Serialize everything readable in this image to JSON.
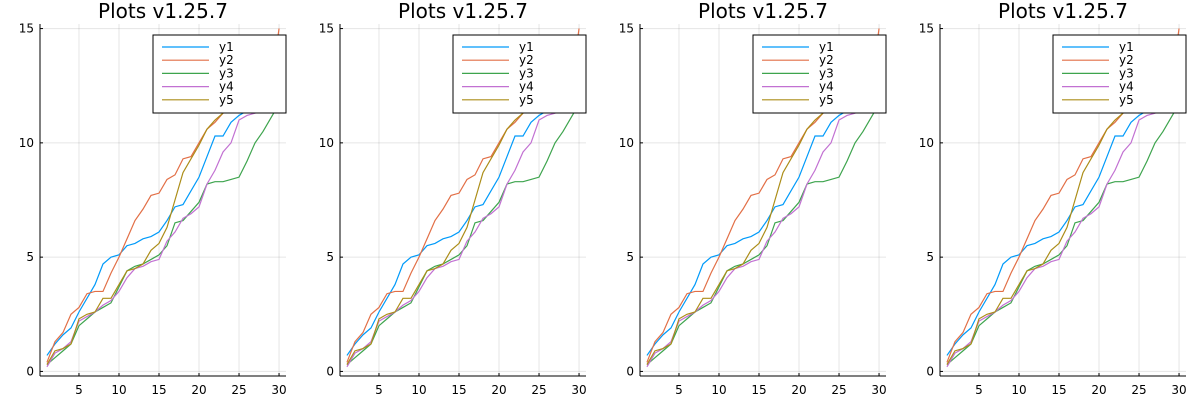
{
  "chart_data": [
    {
      "type": "line",
      "title": "Plots v1.25.7",
      "xlim": [
        0.13,
        30.87
      ],
      "ylim": [
        -0.2,
        15.2
      ],
      "xticks": [
        5,
        10,
        15,
        20,
        25,
        30
      ],
      "yticks": [
        0,
        5,
        10,
        15
      ],
      "grid": true,
      "legend_position": "top-right",
      "x": [
        1,
        2,
        3,
        4,
        5,
        6,
        7,
        8,
        9,
        10,
        11,
        12,
        13,
        14,
        15,
        16,
        17,
        18,
        19,
        20,
        21,
        22,
        23,
        24,
        25,
        26,
        27,
        28,
        29,
        30
      ],
      "series": [
        {
          "name": "y1",
          "color": "#009af9",
          "values": [
            0.7,
            1.2,
            1.6,
            1.9,
            2.6,
            3.2,
            3.8,
            4.7,
            5.0,
            5.1,
            5.5,
            5.6,
            5.8,
            5.9,
            6.1,
            6.6,
            7.2,
            7.3,
            7.9,
            8.5,
            9.4,
            10.3,
            10.3,
            10.9,
            11.2,
            11.4,
            11.5,
            11.5,
            11.6,
            14.6
          ]
        },
        {
          "name": "y2",
          "color": "#e26f46",
          "values": [
            0.4,
            1.3,
            1.7,
            2.5,
            2.8,
            3.4,
            3.5,
            3.5,
            4.3,
            5.0,
            5.8,
            6.6,
            7.1,
            7.7,
            7.8,
            8.4,
            8.6,
            9.3,
            9.4,
            10.0,
            10.6,
            10.9,
            11.3,
            11.5,
            11.6,
            11.6,
            11.7,
            11.7,
            12.5,
            15.0
          ]
        },
        {
          "name": "y3",
          "color": "#3da44d",
          "values": [
            0.3,
            0.6,
            0.9,
            1.2,
            2.0,
            2.3,
            2.6,
            2.8,
            3.0,
            3.7,
            4.4,
            4.6,
            4.7,
            4.9,
            5.1,
            5.5,
            6.5,
            6.6,
            7.0,
            7.4,
            8.2,
            8.3,
            8.3,
            8.4,
            8.5,
            9.2,
            10.0,
            10.5,
            11.1,
            11.7
          ]
        },
        {
          "name": "y4",
          "color": "#c271d2",
          "values": [
            0.2,
            0.8,
            1.0,
            1.3,
            2.2,
            2.4,
            2.6,
            2.9,
            3.1,
            3.5,
            4.1,
            4.5,
            4.6,
            4.8,
            4.9,
            5.7,
            6.1,
            6.7,
            6.9,
            7.2,
            8.2,
            8.8,
            9.6,
            10.0,
            11.0,
            11.2,
            11.3,
            11.5,
            11.6,
            11.6
          ]
        },
        {
          "name": "y5",
          "color": "#ac8d18",
          "values": [
            0.3,
            0.9,
            1.0,
            1.2,
            2.3,
            2.5,
            2.6,
            3.2,
            3.2,
            3.8,
            4.4,
            4.5,
            4.7,
            5.3,
            5.6,
            6.3,
            7.5,
            8.7,
            9.3,
            9.9,
            10.6,
            11.0,
            11.3,
            11.5,
            11.6,
            11.7,
            11.7,
            11.8,
            11.9,
            12.7
          ]
        }
      ]
    },
    {
      "type": "line",
      "title": "Plots v1.25.7",
      "xlim": [
        0.13,
        30.87
      ],
      "ylim": [
        -0.2,
        15.2
      ],
      "xticks": [
        5,
        10,
        15,
        20,
        25,
        30
      ],
      "yticks": [
        0,
        5,
        10,
        15
      ],
      "grid": true,
      "legend_position": "top-right",
      "x": [
        1,
        2,
        3,
        4,
        5,
        6,
        7,
        8,
        9,
        10,
        11,
        12,
        13,
        14,
        15,
        16,
        17,
        18,
        19,
        20,
        21,
        22,
        23,
        24,
        25,
        26,
        27,
        28,
        29,
        30
      ],
      "series": [
        {
          "name": "y1",
          "color": "#009af9",
          "values": [
            0.7,
            1.2,
            1.6,
            1.9,
            2.6,
            3.2,
            3.8,
            4.7,
            5.0,
            5.1,
            5.5,
            5.6,
            5.8,
            5.9,
            6.1,
            6.6,
            7.2,
            7.3,
            7.9,
            8.5,
            9.4,
            10.3,
            10.3,
            10.9,
            11.2,
            11.4,
            11.5,
            11.5,
            11.6,
            14.6
          ]
        },
        {
          "name": "y2",
          "color": "#e26f46",
          "values": [
            0.4,
            1.3,
            1.7,
            2.5,
            2.8,
            3.4,
            3.5,
            3.5,
            4.3,
            5.0,
            5.8,
            6.6,
            7.1,
            7.7,
            7.8,
            8.4,
            8.6,
            9.3,
            9.4,
            10.0,
            10.6,
            10.9,
            11.3,
            11.5,
            11.6,
            11.6,
            11.7,
            11.7,
            12.5,
            15.0
          ]
        },
        {
          "name": "y3",
          "color": "#3da44d",
          "values": [
            0.3,
            0.6,
            0.9,
            1.2,
            2.0,
            2.3,
            2.6,
            2.8,
            3.0,
            3.7,
            4.4,
            4.6,
            4.7,
            4.9,
            5.1,
            5.5,
            6.5,
            6.6,
            7.0,
            7.4,
            8.2,
            8.3,
            8.3,
            8.4,
            8.5,
            9.2,
            10.0,
            10.5,
            11.1,
            11.7
          ]
        },
        {
          "name": "y4",
          "color": "#c271d2",
          "values": [
            0.2,
            0.8,
            1.0,
            1.3,
            2.2,
            2.4,
            2.6,
            2.9,
            3.1,
            3.5,
            4.1,
            4.5,
            4.6,
            4.8,
            4.9,
            5.7,
            6.1,
            6.7,
            6.9,
            7.2,
            8.2,
            8.8,
            9.6,
            10.0,
            11.0,
            11.2,
            11.3,
            11.5,
            11.6,
            11.6
          ]
        },
        {
          "name": "y5",
          "color": "#ac8d18",
          "values": [
            0.3,
            0.9,
            1.0,
            1.2,
            2.3,
            2.5,
            2.6,
            3.2,
            3.2,
            3.8,
            4.4,
            4.5,
            4.7,
            5.3,
            5.6,
            6.3,
            7.5,
            8.7,
            9.3,
            9.9,
            10.6,
            11.0,
            11.3,
            11.5,
            11.6,
            11.7,
            11.7,
            11.8,
            11.9,
            12.7
          ]
        }
      ]
    },
    {
      "type": "line",
      "title": "Plots v1.25.7",
      "xlim": [
        0.13,
        30.87
      ],
      "ylim": [
        -0.2,
        15.2
      ],
      "xticks": [
        5,
        10,
        15,
        20,
        25,
        30
      ],
      "yticks": [
        0,
        5,
        10,
        15
      ],
      "grid": true,
      "legend_position": "top-right",
      "x": [
        1,
        2,
        3,
        4,
        5,
        6,
        7,
        8,
        9,
        10,
        11,
        12,
        13,
        14,
        15,
        16,
        17,
        18,
        19,
        20,
        21,
        22,
        23,
        24,
        25,
        26,
        27,
        28,
        29,
        30
      ],
      "series": [
        {
          "name": "y1",
          "color": "#009af9",
          "values": [
            0.7,
            1.2,
            1.6,
            1.9,
            2.6,
            3.2,
            3.8,
            4.7,
            5.0,
            5.1,
            5.5,
            5.6,
            5.8,
            5.9,
            6.1,
            6.6,
            7.2,
            7.3,
            7.9,
            8.5,
            9.4,
            10.3,
            10.3,
            10.9,
            11.2,
            11.4,
            11.5,
            11.5,
            11.6,
            14.6
          ]
        },
        {
          "name": "y2",
          "color": "#e26f46",
          "values": [
            0.4,
            1.3,
            1.7,
            2.5,
            2.8,
            3.4,
            3.5,
            3.5,
            4.3,
            5.0,
            5.8,
            6.6,
            7.1,
            7.7,
            7.8,
            8.4,
            8.6,
            9.3,
            9.4,
            10.0,
            10.6,
            10.9,
            11.3,
            11.5,
            11.6,
            11.6,
            11.7,
            11.7,
            12.5,
            15.0
          ]
        },
        {
          "name": "y3",
          "color": "#3da44d",
          "values": [
            0.3,
            0.6,
            0.9,
            1.2,
            2.0,
            2.3,
            2.6,
            2.8,
            3.0,
            3.7,
            4.4,
            4.6,
            4.7,
            4.9,
            5.1,
            5.5,
            6.5,
            6.6,
            7.0,
            7.4,
            8.2,
            8.3,
            8.3,
            8.4,
            8.5,
            9.2,
            10.0,
            10.5,
            11.1,
            11.7
          ]
        },
        {
          "name": "y4",
          "color": "#c271d2",
          "values": [
            0.2,
            0.8,
            1.0,
            1.3,
            2.2,
            2.4,
            2.6,
            2.9,
            3.1,
            3.5,
            4.1,
            4.5,
            4.6,
            4.8,
            4.9,
            5.7,
            6.1,
            6.7,
            6.9,
            7.2,
            8.2,
            8.8,
            9.6,
            10.0,
            11.0,
            11.2,
            11.3,
            11.5,
            11.6,
            11.6
          ]
        },
        {
          "name": "y5",
          "color": "#ac8d18",
          "values": [
            0.3,
            0.9,
            1.0,
            1.2,
            2.3,
            2.5,
            2.6,
            3.2,
            3.2,
            3.8,
            4.4,
            4.5,
            4.7,
            5.3,
            5.6,
            6.3,
            7.5,
            8.7,
            9.3,
            9.9,
            10.6,
            11.0,
            11.3,
            11.5,
            11.6,
            11.7,
            11.7,
            11.8,
            11.9,
            12.7
          ]
        }
      ]
    },
    {
      "type": "line",
      "title": "Plots v1.25.7",
      "xlim": [
        0.13,
        30.87
      ],
      "ylim": [
        -0.2,
        15.2
      ],
      "xticks": [
        5,
        10,
        15,
        20,
        25,
        30
      ],
      "yticks": [
        0,
        5,
        10,
        15
      ],
      "grid": true,
      "legend_position": "top-right",
      "x": [
        1,
        2,
        3,
        4,
        5,
        6,
        7,
        8,
        9,
        10,
        11,
        12,
        13,
        14,
        15,
        16,
        17,
        18,
        19,
        20,
        21,
        22,
        23,
        24,
        25,
        26,
        27,
        28,
        29,
        30
      ],
      "series": [
        {
          "name": "y1",
          "color": "#009af9",
          "values": [
            0.7,
            1.2,
            1.6,
            1.9,
            2.6,
            3.2,
            3.8,
            4.7,
            5.0,
            5.1,
            5.5,
            5.6,
            5.8,
            5.9,
            6.1,
            6.6,
            7.2,
            7.3,
            7.9,
            8.5,
            9.4,
            10.3,
            10.3,
            10.9,
            11.2,
            11.4,
            11.5,
            11.5,
            11.6,
            14.6
          ]
        },
        {
          "name": "y2",
          "color": "#e26f46",
          "values": [
            0.4,
            1.3,
            1.7,
            2.5,
            2.8,
            3.4,
            3.5,
            3.5,
            4.3,
            5.0,
            5.8,
            6.6,
            7.1,
            7.7,
            7.8,
            8.4,
            8.6,
            9.3,
            9.4,
            10.0,
            10.6,
            10.9,
            11.3,
            11.5,
            11.6,
            11.6,
            11.7,
            11.7,
            12.5,
            15.0
          ]
        },
        {
          "name": "y3",
          "color": "#3da44d",
          "values": [
            0.3,
            0.6,
            0.9,
            1.2,
            2.0,
            2.3,
            2.6,
            2.8,
            3.0,
            3.7,
            4.4,
            4.6,
            4.7,
            4.9,
            5.1,
            5.5,
            6.5,
            6.6,
            7.0,
            7.4,
            8.2,
            8.3,
            8.3,
            8.4,
            8.5,
            9.2,
            10.0,
            10.5,
            11.1,
            11.7
          ]
        },
        {
          "name": "y4",
          "color": "#c271d2",
          "values": [
            0.2,
            0.8,
            1.0,
            1.3,
            2.2,
            2.4,
            2.6,
            2.9,
            3.1,
            3.5,
            4.1,
            4.5,
            4.6,
            4.8,
            4.9,
            5.7,
            6.1,
            6.7,
            6.9,
            7.2,
            8.2,
            8.8,
            9.6,
            10.0,
            11.0,
            11.2,
            11.3,
            11.5,
            11.6,
            11.6
          ]
        },
        {
          "name": "y5",
          "color": "#ac8d18",
          "values": [
            0.3,
            0.9,
            1.0,
            1.2,
            2.3,
            2.5,
            2.6,
            3.2,
            3.2,
            3.8,
            4.4,
            4.5,
            4.7,
            5.3,
            5.6,
            6.3,
            7.5,
            8.7,
            9.3,
            9.9,
            10.6,
            11.0,
            11.3,
            11.5,
            11.6,
            11.7,
            11.7,
            11.8,
            11.9,
            12.7
          ]
        }
      ]
    }
  ]
}
